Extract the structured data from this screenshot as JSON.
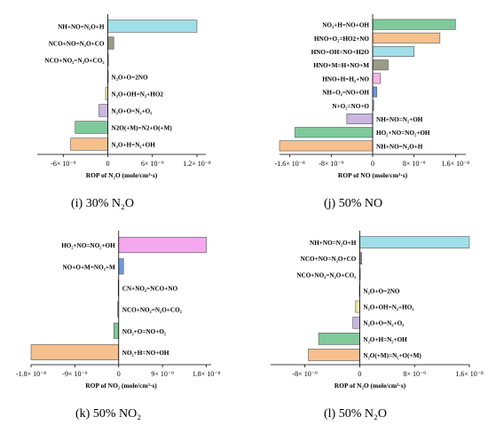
{
  "figure": {
    "panels": [
      {
        "id": "i",
        "caption": "(i) 30% N₂O",
        "chart_data": {
          "type": "bar",
          "orientation": "horizontal",
          "xlabel": "ROP of N₂O (mole/cm³·s)",
          "xlim": [
            -9.5e-09,
            1.32e-08
          ],
          "xticks": [
            -6e-09,
            0,
            6e-09,
            1.2e-08
          ],
          "xtick_labels": [
            "-6× 10⁻⁹",
            "0",
            "6× 10⁻⁹",
            "1.2× 10⁻⁸"
          ],
          "categories": [
            "NH+NO=N₂O+H",
            "NCO+NO=N₂O+CO",
            "NCO+NO₂=N₂O+CO₂",
            "N₂O+O=2NO",
            "N₂O+OH=N₂+HO2",
            "N₂O+O=N₂+O₂",
            "N2O(+M)=N2+O(+M)",
            "N₂O+H=N₂+OH"
          ],
          "values": [
            1.2e-08,
            8e-10,
            5e-11,
            -1e-11,
            -3e-10,
            -1.2e-09,
            -4.4e-09,
            -5e-09
          ],
          "colors": [
            "#a0dfea",
            "#9b9b86",
            "#c8c8c8",
            "#e0e0e0",
            "#f3ec9c",
            "#c9b7df",
            "#7fc99a",
            "#f6c08e"
          ]
        }
      },
      {
        "id": "j",
        "caption": "(j) 50% NO",
        "chart_data": {
          "type": "bar",
          "orientation": "horizontal",
          "xlabel": "ROP of NO (mole/cm³·s)",
          "xlim": [
            -1.8e-08,
            1.8e-08
          ],
          "xticks": [
            -1.6e-08,
            -8e-09,
            0,
            8e-09,
            1.6e-08
          ],
          "xtick_labels": [
            "-1.6× 10⁻⁸",
            "-8× 10⁻⁹",
            "0",
            "8× 10⁻⁹",
            "1.6× 10⁻⁸"
          ],
          "categories": [
            "NO₂+H=NO+OH",
            "HNO+O₂=HO2+NO",
            "HNO+OH=NO+H2O",
            "HNO+M=H+NO+M",
            "HNO+H=H₂+NO",
            "NH+O₂=NO+OH",
            "N+O₂=NO+O",
            "NH+NO=N₂+OH",
            "HO₂+NO=NO₂+OH",
            "NH+NO=N₂O+H"
          ],
          "values": [
            1.6e-08,
            1.3e-08,
            8e-09,
            3e-09,
            1.5e-09,
            8e-10,
            2e-10,
            -5e-09,
            -1.5e-08,
            -1.8e-08
          ],
          "colors": [
            "#7fc99a",
            "#f6c08e",
            "#a0dfea",
            "#9b9b86",
            "#f5b7e6",
            "#6f98e0",
            "#d0d0d0",
            "#c9b7df",
            "#7fc99a",
            "#f6c08e"
          ]
        }
      },
      {
        "id": "k",
        "caption": "(k) 50% NO₂",
        "chart_data": {
          "type": "bar",
          "orientation": "horizontal",
          "xlabel": "ROP of NO₂ (mole/cm³·s)",
          "xlim": [
            -1.8e-08,
            1.9e-08
          ],
          "xticks": [
            -1.8e-08,
            -9e-09,
            0,
            9e-09,
            1.8e-08
          ],
          "xtick_labels": [
            "-1.8× 10⁻⁸",
            "-9× 10⁻⁹",
            "0",
            "9× 10⁻⁹",
            "1.8× 10⁻⁸"
          ],
          "categories": [
            "HO₂+NO=NO₂+OH",
            "NO+O+M=NO₂+M",
            "CN+NO₂=NCO+NO",
            "NCO+NO₂=N₂O+CO₂",
            "NO₂+O=NO+O₂",
            "NO₂+H=NO+OH"
          ],
          "values": [
            1.8e-08,
            1e-09,
            -1e-10,
            -2e-10,
            -1e-09,
            -1.8e-08
          ],
          "colors": [
            "#f5a8ee",
            "#6f98e0",
            "#d0d0d0",
            "#c8c8c8",
            "#7fc99a",
            "#f6c08e"
          ]
        }
      },
      {
        "id": "l",
        "caption": "(l) 50% N₂O",
        "chart_data": {
          "type": "bar",
          "orientation": "horizontal",
          "xlabel": "ROP of N₂O (mole/cm³·s)",
          "xlim": [
            -1.3e-08,
            1.6e-08
          ],
          "xticks": [
            -8e-09,
            0,
            8e-09,
            1.6e-08
          ],
          "xtick_labels": [
            "-8× 10⁻⁹",
            "0",
            "8× 10⁻⁹",
            "1.6× 10⁻⁸"
          ],
          "categories": [
            "NH+NO=N₂O+H",
            "NCO+NO=N₂O+CO",
            "NCO+NO₂=N₂O+CO₂",
            "N₂O+O=2NO",
            "N₂O+OH=N₂+HO₂",
            "N₂O+O=N₂+O₂",
            "N₂O+H=N₂+OH",
            "N₂O(+M)=N₂+O(+M)"
          ],
          "values": [
            1.6e-08,
            3e-10,
            5e-11,
            -5e-11,
            -6e-10,
            -1e-09,
            -6e-09,
            -7.5e-09
          ],
          "colors": [
            "#a0dfea",
            "#9b9b86",
            "#c8c8c8",
            "#e0e0e0",
            "#f3ec9c",
            "#c9b7df",
            "#7fc99a",
            "#f6c08e"
          ]
        }
      }
    ]
  }
}
